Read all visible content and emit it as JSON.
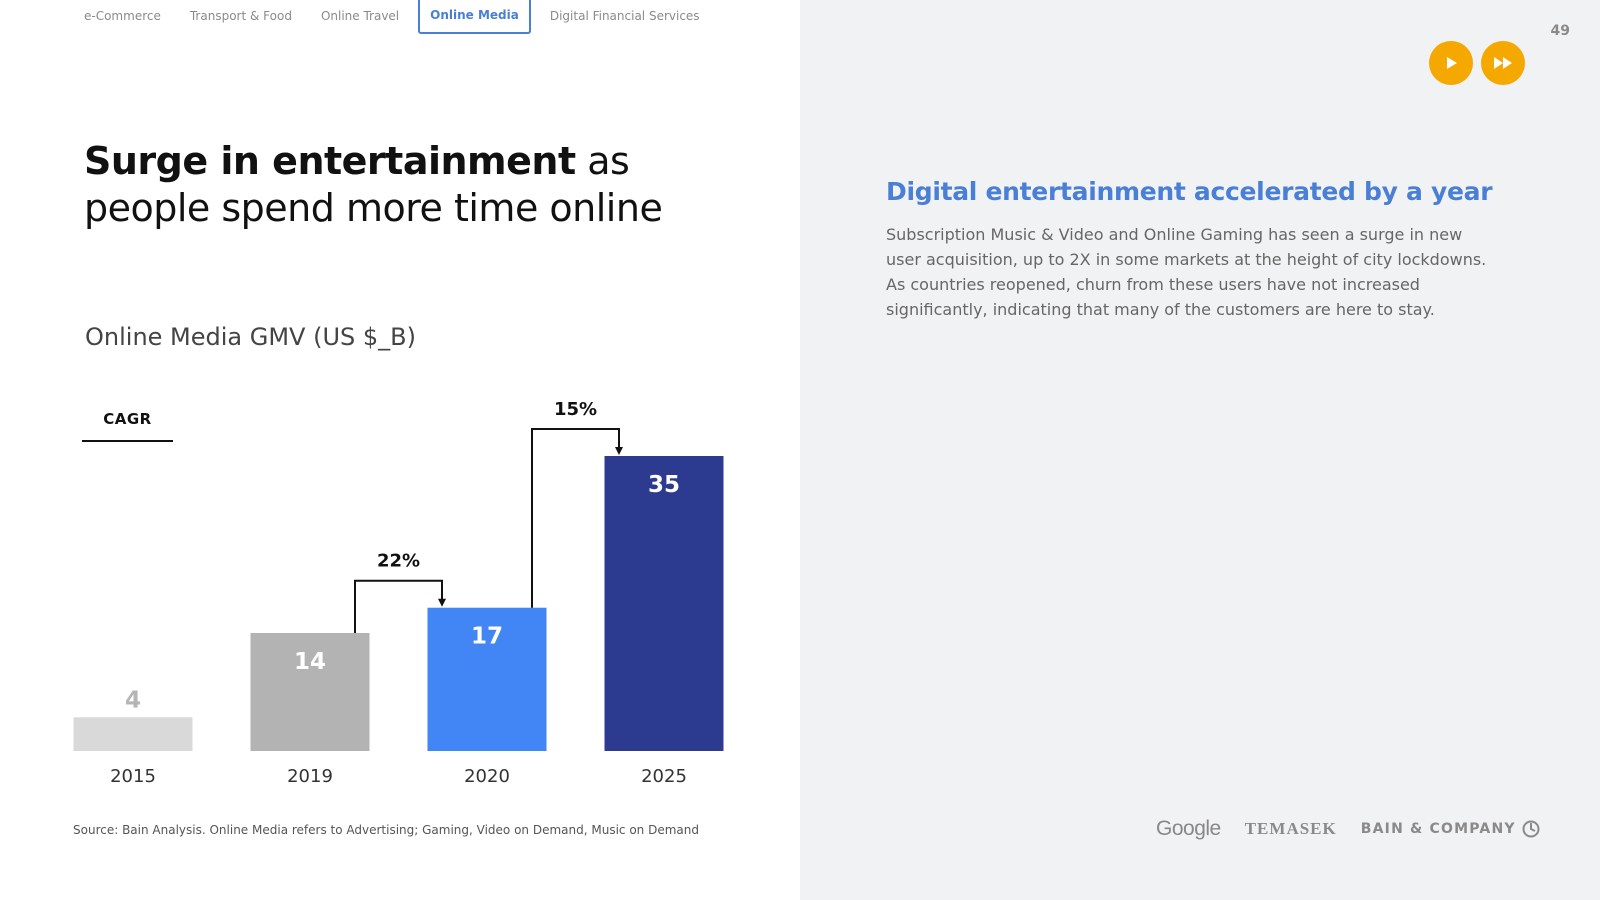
{
  "tabs": [
    {
      "label": "e-Commerce",
      "active": false
    },
    {
      "label": "Transport & Food",
      "active": false
    },
    {
      "label": "Online Travel",
      "active": false
    },
    {
      "label": "Online Media",
      "active": true
    },
    {
      "label": "Digital Financial Services",
      "active": false
    }
  ],
  "title": {
    "bold": "Surge in entertainment",
    "rest": " as people spend more time online"
  },
  "subtitle": "Online Media GMV (US $_B)",
  "cagr_label": "CAGR",
  "source": "Source: Bain Analysis. Online Media refers to Advertising; Gaming, Video on Demand, Music on Demand",
  "page_number": "49",
  "controls": {
    "play_icon": "play-icon",
    "fast_forward_icon": "fast-forward-icon"
  },
  "insight": {
    "heading": "Digital entertainment accelerated by a year",
    "body": "Subscription Music & Video and Online Gaming has seen a surge in new user acquisition, up to 2X in some markets at the height of city lockdowns. As countries reopened, churn from these users have not increased significantly, indicating that many of the customers are here to stay."
  },
  "logos": {
    "google": "Google",
    "temasek": "TEMASEK",
    "bain": "BAIN & COMPANY"
  },
  "colors": {
    "accent_blue": "#4a7fd6",
    "control_orange": "#f5a800",
    "bar_2015": "#d9d9d9",
    "bar_2019": "#b3b3b3",
    "bar_2020": "#4285f4",
    "bar_2025": "#2c3a8f"
  },
  "chart_data": {
    "type": "bar",
    "title": "Online Media GMV (US $_B)",
    "categories": [
      "2015",
      "2019",
      "2020",
      "2025"
    ],
    "values": [
      4,
      14,
      17,
      35
    ],
    "data_labels": [
      "4",
      "14",
      "17",
      "35"
    ],
    "ylim": [
      0,
      35
    ],
    "grid": false,
    "cagr": [
      {
        "from": "2019",
        "to": "2020",
        "label": "22%"
      },
      {
        "from": "2020",
        "to": "2025",
        "label": "15%"
      }
    ]
  }
}
